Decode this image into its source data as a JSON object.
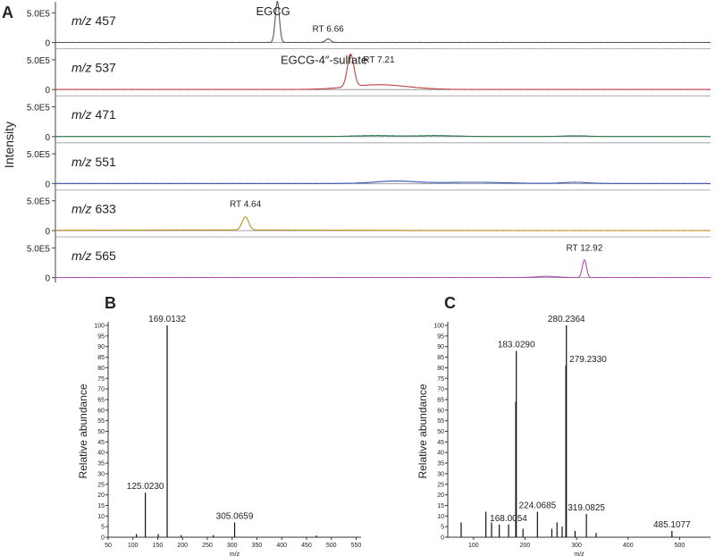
{
  "panel_labels": [
    "A",
    "B",
    "C"
  ],
  "panel_a": {
    "ylabel": "Intensity",
    "tick_labels": [
      "0",
      "5.0E5"
    ]
  },
  "chart_data": [
    {
      "type": "line",
      "panel": "A",
      "ylabel": "Intensity",
      "xlim": [
        0,
        16
      ],
      "ylim": [
        0,
        700000
      ],
      "yticks": [
        0,
        500000
      ],
      "ytick_labels": [
        "0",
        "5.0E5"
      ],
      "traces": [
        {
          "name": "m/z 457",
          "color": "#555555",
          "peaks": [
            [
              5.42,
              700000,
              0.05
            ],
            [
              6.66,
              60000,
              0.06
            ]
          ],
          "annotations": [
            {
              "text": "EGCG",
              "x": 4.9,
              "y": 460000,
              "size": "large"
            },
            {
              "text": "RT 6.66",
              "x": 6.66,
              "y": 180000,
              "size": "small"
            }
          ]
        },
        {
          "name": "m/z 537",
          "color": "#c04040",
          "peaks": [
            [
              7.21,
              550000,
              0.08
            ],
            [
              7.9,
              80000,
              0.7
            ]
          ],
          "annotations": [
            {
              "text": "EGCG-4″-sulfate",
              "x": 5.5,
              "y": 430000,
              "size": "large"
            },
            {
              "text": "RT 7.21",
              "x": 7.9,
              "y": 450000,
              "size": "small"
            }
          ]
        },
        {
          "name": "m/z 471",
          "color": "#2e7d4f",
          "peaks": [
            [
              7.8,
              15000,
              0.5
            ],
            [
              9.3,
              15000,
              0.5
            ],
            [
              12.7,
              12000,
              0.3
            ]
          ],
          "annotations": []
        },
        {
          "name": "m/z 551",
          "color": "#3050b0",
          "peaks": [
            [
              8.3,
              40000,
              0.5
            ],
            [
              10.2,
              20000,
              0.8
            ],
            [
              12.7,
              20000,
              0.3
            ]
          ],
          "annotations": []
        },
        {
          "name": "m/z 633",
          "color": "#b89020",
          "peaks": [
            [
              4.64,
              220000,
              0.08
            ],
            [
              4.0,
              10000,
              2.5
            ]
          ],
          "annotations": [
            {
              "text": "RT 4.64",
              "x": 4.64,
              "y": 400000,
              "size": "small"
            }
          ]
        },
        {
          "name": "m/z 565",
          "color": "#b050b0",
          "peaks": [
            [
              12.92,
              300000,
              0.05
            ],
            [
              12.0,
              20000,
              0.25
            ]
          ],
          "annotations": [
            {
              "text": "RT 12.92",
              "x": 12.92,
              "y": 450000,
              "size": "small"
            }
          ]
        }
      ]
    },
    {
      "type": "bar",
      "panel": "B",
      "xlabel": "m/z",
      "ylabel": "Relative abundance",
      "xlim": [
        50,
        560
      ],
      "ylim": [
        0,
        100
      ],
      "xticks": [
        50,
        100,
        150,
        200,
        250,
        300,
        350,
        400,
        450,
        500,
        550
      ],
      "yticks": [
        0,
        5,
        10,
        15,
        20,
        25,
        30,
        35,
        40,
        45,
        50,
        55,
        60,
        65,
        70,
        75,
        80,
        85,
        90,
        95,
        100
      ],
      "peaks": [
        {
          "mz": 169.0132,
          "intensity": 100,
          "label": "169.0132"
        },
        {
          "mz": 125.023,
          "intensity": 21,
          "label": "125.0230"
        },
        {
          "mz": 305.0659,
          "intensity": 7,
          "label": "305.0659"
        },
        {
          "mz": 107,
          "intensity": 1.5,
          "label": ""
        },
        {
          "mz": 151,
          "intensity": 1.5,
          "label": ""
        },
        {
          "mz": 197,
          "intensity": 1,
          "label": ""
        },
        {
          "mz": 262,
          "intensity": 1,
          "label": ""
        },
        {
          "mz": 470,
          "intensity": 0.8,
          "label": ""
        }
      ]
    },
    {
      "type": "bar",
      "panel": "C",
      "xlabel": "m/z",
      "ylabel": "Relative abundance",
      "xlim": [
        50,
        560
      ],
      "ylim": [
        0,
        100
      ],
      "xticks": [
        100,
        200,
        300,
        400,
        500
      ],
      "yticks": [
        0,
        5,
        10,
        15,
        20,
        25,
        30,
        35,
        40,
        45,
        50,
        55,
        60,
        65,
        70,
        75,
        80,
        85,
        90,
        95,
        100
      ],
      "peaks": [
        {
          "mz": 280.2364,
          "intensity": 100,
          "label": "280.2364"
        },
        {
          "mz": 279.233,
          "intensity": 81,
          "label": "279.2330"
        },
        {
          "mz": 183.029,
          "intensity": 88,
          "label": "183.0290"
        },
        {
          "mz": 182,
          "intensity": 64,
          "label": ""
        },
        {
          "mz": 168.0054,
          "intensity": 6,
          "label": "168.0054"
        },
        {
          "mz": 224.0685,
          "intensity": 12,
          "label": "224.0685"
        },
        {
          "mz": 319.0825,
          "intensity": 11,
          "label": "319.0825"
        },
        {
          "mz": 485.1077,
          "intensity": 3,
          "label": "485.1077"
        },
        {
          "mz": 124,
          "intensity": 12,
          "label": ""
        },
        {
          "mz": 135,
          "intensity": 7,
          "label": ""
        },
        {
          "mz": 150,
          "intensity": 6,
          "label": ""
        },
        {
          "mz": 196,
          "intensity": 4,
          "label": ""
        },
        {
          "mz": 76,
          "intensity": 7,
          "label": ""
        },
        {
          "mz": 252,
          "intensity": 4,
          "label": ""
        },
        {
          "mz": 262,
          "intensity": 7,
          "label": ""
        },
        {
          "mz": 272,
          "intensity": 5,
          "label": ""
        },
        {
          "mz": 297,
          "intensity": 3,
          "label": ""
        },
        {
          "mz": 338,
          "intensity": 2,
          "label": ""
        }
      ]
    }
  ]
}
